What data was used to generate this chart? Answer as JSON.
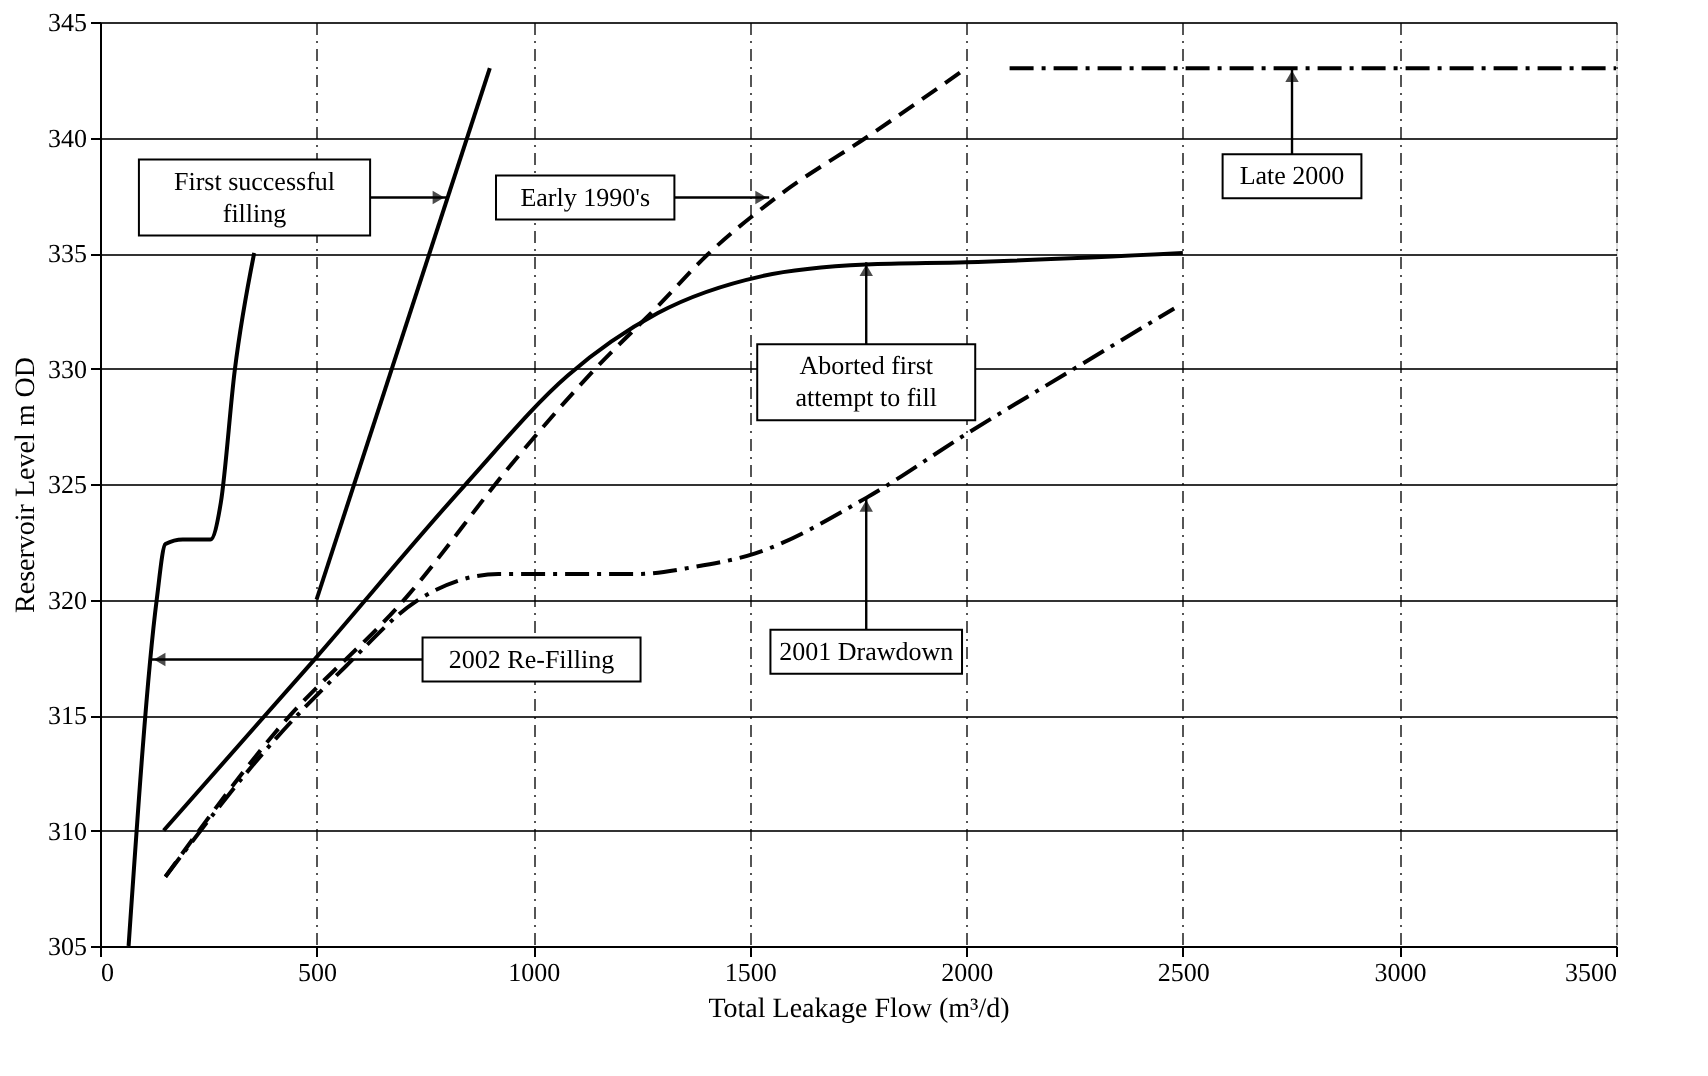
{
  "chart_data": {
    "type": "line",
    "xlabel": "Total Leakage Flow (m³/d)",
    "ylabel": "Reservoir Level m OD",
    "xlim": [
      0,
      3500
    ],
    "xticks": [
      0,
      500,
      1000,
      1500,
      2000,
      2500,
      3000,
      3500
    ],
    "ylim": [
      305,
      345
    ],
    "yticks": [
      305,
      310,
      315,
      320,
      325,
      330,
      335,
      340,
      345
    ],
    "grid": true,
    "series": [
      {
        "color": "#000000",
        "line_style": "solid",
        "x": [
          66,
          131,
          151,
          191,
          255,
          279,
          311,
          356
        ],
        "values": [
          305,
          320,
          322.4,
          322.6,
          322.6,
          324.2,
          329.9,
          335
        ]
      },
      {
        "color": "#000000",
        "line_style": "solid",
        "x": [
          500,
          900
        ],
        "values": [
          320,
          343
        ]
      },
      {
        "color": "#000000",
        "line_style": "solid",
        "x": [
          147,
          495,
          840,
          1080,
          1288,
          1529,
          1769,
          2000,
          2500
        ],
        "values": [
          310,
          317.4,
          324.9,
          329.7,
          332.4,
          334,
          334.5,
          334.6,
          335
        ]
      },
      {
        "color": "#000000",
        "line_style": "dashed",
        "x": [
          151,
          407,
          712,
          952,
          1144,
          1288,
          1401,
          1561,
          1785,
          2000
        ],
        "values": [
          308,
          314.3,
          320.2,
          325.9,
          330,
          332.7,
          334.9,
          337.4,
          340.2,
          343
        ]
      },
      {
        "color": "#000000",
        "line_style": "dashdot",
        "x": [
          151,
          407,
          567,
          728,
          920,
          1240,
          1369,
          1513,
          1769,
          2003,
          2241,
          2480
        ],
        "values": [
          308,
          314,
          317.1,
          319.9,
          321.1,
          321.1,
          321.4,
          322,
          324.4,
          327.2,
          329.9,
          332.6
        ]
      },
      {
        "color": "#000000",
        "line_style": "dashdot",
        "x": [
          2100,
          3500
        ],
        "values": [
          343,
          343
        ]
      }
    ],
    "annotations": [
      {
        "text": "First successful\nfilling",
        "x": 800,
        "y": 337.4
      },
      {
        "text": "Early 1990's",
        "x": 1545,
        "y": 337.4
      },
      {
        "text": "Late 2000",
        "x": 2752,
        "y": 343
      },
      {
        "text": "Aborted first\nattempt to fill",
        "x": 1769,
        "y": 334.6
      },
      {
        "text": "2001 Drawdown",
        "x": 1769,
        "y": 324.4
      },
      {
        "text": "2002 Re-Filling",
        "x": 119,
        "y": 317.4
      }
    ]
  }
}
